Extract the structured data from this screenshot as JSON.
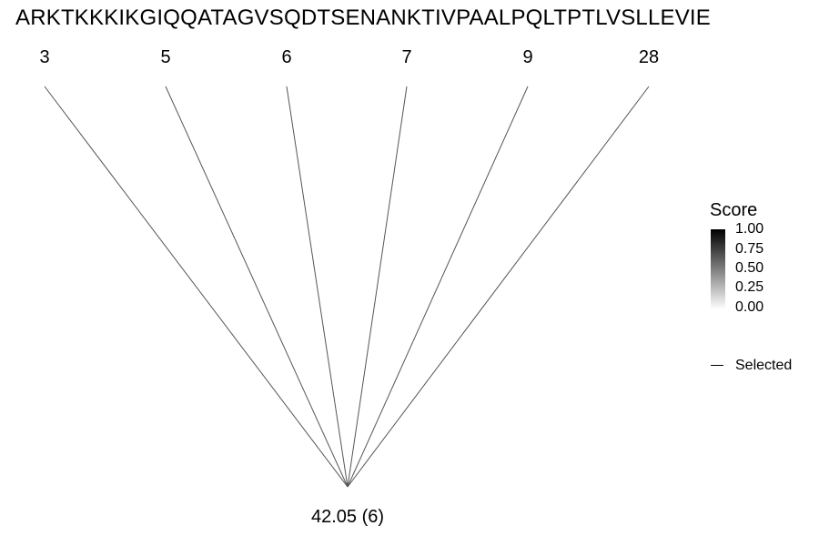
{
  "sequence": "ARKTKKKIKGIQQATAGVSQDTSENANKTIVPAALPQLTPTLVSLLEVIE",
  "top_nodes": [
    {
      "label": "3"
    },
    {
      "label": "5"
    },
    {
      "label": "6"
    },
    {
      "label": "7"
    },
    {
      "label": "9"
    },
    {
      "label": "28"
    }
  ],
  "bottom_node": {
    "label": "42.05 (6)"
  },
  "legend": {
    "score_title": "Score",
    "score_ticks": [
      "1.00",
      "0.75",
      "0.50",
      "0.25",
      "0.00"
    ],
    "score_gradient": {
      "high": "#000000",
      "low": "#ffffff"
    },
    "selected_label": "Selected"
  },
  "colors": {
    "edge": "#555555",
    "text": "#000000",
    "background": "#ffffff"
  }
}
